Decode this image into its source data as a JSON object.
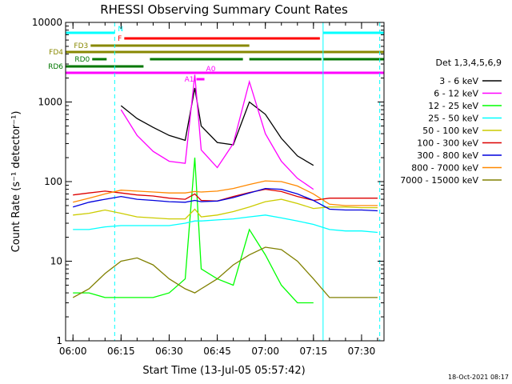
{
  "chart_data": {
    "type": "line",
    "title": "RHESSI Observing Summary Count Rates",
    "xlabel": "Start Time (13-Jul-05 05:57:42)",
    "ylabel": "Count Rate (s⁻¹ detector⁻¹)",
    "y_scale": "log",
    "ylim": [
      1,
      10000
    ],
    "xlim": [
      "05:57:42",
      "07:37:00"
    ],
    "x_ticks": [
      "06:00",
      "06:15",
      "06:30",
      "06:45",
      "07:00",
      "07:15",
      "07:30"
    ],
    "y_ticks": [
      "1",
      "10",
      "100",
      "1000",
      "10000"
    ],
    "legend_title": "Det 1,3,4,5,6,9",
    "legend_position": "right",
    "footer": "18-Oct-2021 08:17",
    "x": [
      "06:00",
      "06:05",
      "06:10",
      "06:15",
      "06:20",
      "06:25",
      "06:30",
      "06:35",
      "06:38",
      "06:40",
      "06:45",
      "06:50",
      "06:55",
      "07:00",
      "07:05",
      "07:10",
      "07:15",
      "07:20",
      "07:25",
      "07:30",
      "07:35"
    ],
    "series": [
      {
        "name": "3 - 6 keV",
        "color": "#000000",
        "values": [
          null,
          null,
          null,
          900,
          620,
          480,
          380,
          330,
          1500,
          500,
          310,
          290,
          1000,
          700,
          350,
          210,
          160,
          null,
          null,
          null,
          null
        ]
      },
      {
        "name": "6 - 12 keV",
        "color": "#ff00ff",
        "values": [
          null,
          null,
          null,
          800,
          380,
          240,
          180,
          170,
          2200,
          250,
          150,
          300,
          1800,
          400,
          180,
          110,
          80,
          null,
          null,
          null,
          null
        ]
      },
      {
        "name": "12 - 25 keV",
        "color": "#00ff00",
        "values": [
          4,
          4,
          3.5,
          3.5,
          3.5,
          3.5,
          4,
          6,
          200,
          8,
          6,
          5,
          25,
          12,
          5,
          3,
          3,
          null,
          null,
          null,
          null
        ]
      },
      {
        "name": "25 - 50 keV",
        "color": "#00ffff",
        "values": [
          25,
          25,
          27,
          28,
          28,
          28,
          28,
          30,
          32,
          32,
          33,
          34,
          36,
          38,
          35,
          32,
          29,
          25,
          24,
          24,
          23
        ]
      },
      {
        "name": "50 - 100 keV",
        "color": "#cccc00",
        "values": [
          38,
          40,
          44,
          40,
          36,
          35,
          34,
          34,
          45,
          36,
          38,
          42,
          48,
          56,
          60,
          53,
          46,
          48,
          48,
          47,
          47
        ]
      },
      {
        "name": "100 - 300 keV",
        "color": "#dd0000",
        "values": [
          68,
          72,
          76,
          72,
          68,
          66,
          62,
          60,
          70,
          58,
          57,
          65,
          73,
          80,
          75,
          65,
          58,
          62,
          62,
          62,
          62
        ]
      },
      {
        "name": "300 - 800 keV",
        "color": "#0000dd",
        "values": [
          48,
          55,
          60,
          65,
          60,
          58,
          56,
          55,
          58,
          56,
          57,
          63,
          72,
          82,
          80,
          70,
          58,
          45,
          44,
          44,
          43
        ]
      },
      {
        "name": "800 - 7000 keV",
        "color": "#ff8800",
        "values": [
          55,
          62,
          70,
          78,
          76,
          74,
          72,
          72,
          75,
          74,
          76,
          82,
          92,
          102,
          100,
          88,
          70,
          52,
          50,
          50,
          50
        ]
      },
      {
        "name": "7000 - 15000 keV",
        "color": "#808000",
        "values": [
          3.5,
          4.5,
          7,
          10,
          11,
          9,
          6,
          4.5,
          4,
          4.5,
          6,
          9,
          12,
          15,
          14,
          10,
          6,
          3.5,
          3.5,
          3.5,
          3.5
        ]
      }
    ],
    "flags": [
      {
        "name": "N",
        "color": "#00ffff",
        "segments": [
          [
            "05:57:42",
            "06:13:00"
          ],
          [
            "07:18:00",
            "07:37:00"
          ]
        ]
      },
      {
        "name": "F",
        "color": "#ff0000",
        "segments": [
          [
            "06:16:00",
            "07:17:00"
          ]
        ]
      },
      {
        "name": "FD3",
        "color": "#888800",
        "segments": [
          [
            "06:05:30",
            "06:55:00"
          ]
        ]
      },
      {
        "name": "FD4",
        "color": "#888800",
        "segments": [
          [
            "05:57:42",
            "07:37:00"
          ]
        ]
      },
      {
        "name": "RD0",
        "color": "#007700",
        "segments": [
          [
            "06:06:00",
            "06:10:30"
          ],
          [
            "06:24:00",
            "06:53:00"
          ],
          [
            "06:55:00",
            "07:17:30"
          ],
          [
            "07:18:00",
            "07:37:00"
          ]
        ]
      },
      {
        "name": "RD6",
        "color": "#007700",
        "segments": [
          [
            "05:57:42",
            "06:22:00"
          ]
        ]
      },
      {
        "name": "A1",
        "color": "#ff00ff",
        "segments": [
          [
            "06:38:30",
            "06:41:00"
          ]
        ]
      },
      {
        "name": "A0",
        "color": "#ff00ff",
        "segments": [
          [
            "05:57:42",
            "07:37:00"
          ]
        ]
      }
    ],
    "vertical_markers": [
      {
        "time": "06:13:00",
        "color": "#00ffff",
        "style": "dashed"
      },
      {
        "time": "07:18:00",
        "color": "#00ffff",
        "style": "solid"
      },
      {
        "time": "07:35:40",
        "color": "#00ffff",
        "style": "dashed"
      }
    ]
  }
}
